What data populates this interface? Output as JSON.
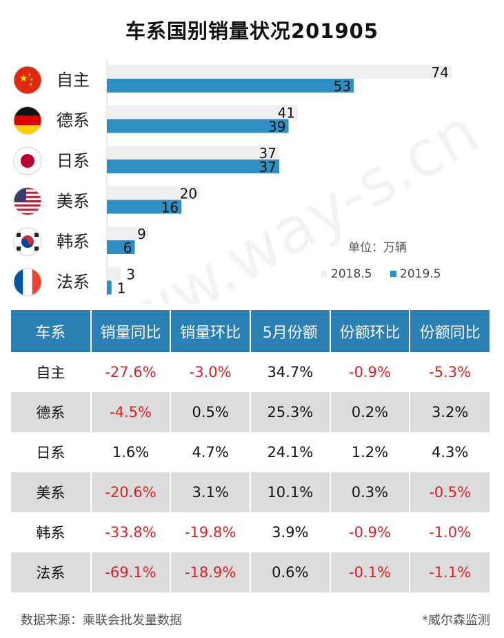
{
  "chart_data": {
    "type": "bar",
    "orientation": "horizontal",
    "title": "车系国别销量状况201905",
    "unit": "单位：万辆",
    "categories": [
      "自主",
      "德系",
      "日系",
      "美系",
      "韩系",
      "法系"
    ],
    "flag_icons": [
      "china-flag-icon",
      "germany-flag-icon",
      "japan-flag-icon",
      "usa-flag-icon",
      "korea-flag-icon",
      "france-flag-icon"
    ],
    "series": [
      {
        "name": "2018.5",
        "color": "#efefef",
        "values": [
          74,
          41,
          37,
          20,
          9,
          3
        ]
      },
      {
        "name": "2019.5",
        "color": "#2f8fc3",
        "values": [
          53,
          39,
          37,
          16,
          6,
          1
        ]
      }
    ],
    "xlim": [
      0,
      74
    ]
  },
  "table": {
    "headers": [
      "车系",
      "销量同比",
      "销量环比",
      "5月份额",
      "份额环比",
      "份额同比"
    ],
    "rows": [
      [
        "自主",
        "-27.6%",
        "-3.0%",
        "34.7%",
        "-0.9%",
        "-5.3%"
      ],
      [
        "德系",
        "-4.5%",
        "0.5%",
        "25.3%",
        "0.2%",
        "3.2%"
      ],
      [
        "日系",
        "1.6%",
        "4.7%",
        "24.1%",
        "1.2%",
        "4.3%"
      ],
      [
        "美系",
        "-20.6%",
        "3.1%",
        "10.1%",
        "0.3%",
        "-0.5%"
      ],
      [
        "韩系",
        "-33.8%",
        "-19.8%",
        "3.9%",
        "-0.9%",
        "-1.0%"
      ],
      [
        "法系",
        "-69.1%",
        "-18.9%",
        "0.6%",
        "-0.1%",
        "-1.1%"
      ]
    ]
  },
  "footer": {
    "source": "数据来源：乘联会批发量数据",
    "credit": "*威尔森监测"
  },
  "watermark": "www.way-s.cn"
}
